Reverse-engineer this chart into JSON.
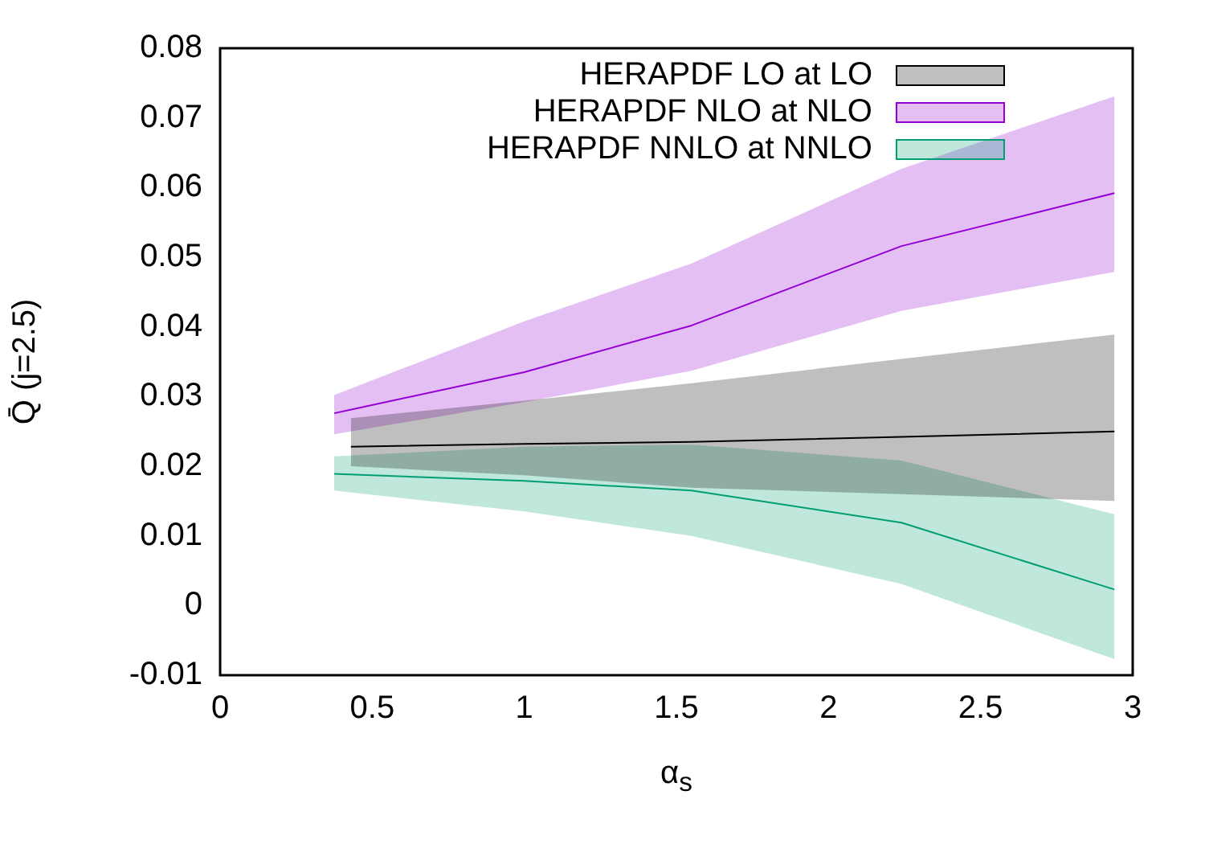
{
  "chart_data": {
    "type": "line",
    "xlabel": "α$_{s}$",
    "ylabel": "Q̄ (j=2.5)",
    "xlim": [
      0,
      3
    ],
    "xticks": [
      0,
      0.5,
      1,
      1.5,
      2,
      2.5,
      3
    ],
    "ylim": [
      -0.01,
      0.08
    ],
    "yticks": [
      -0.01,
      0,
      0.01,
      0.02,
      0.03,
      0.04,
      0.05,
      0.06,
      0.07,
      0.08
    ],
    "grid": false,
    "legend": "top right",
    "marker": "none",
    "line_style": "solid",
    "series": [
      {
        "name": "HERAPDF LO at LO",
        "color": "#000000",
        "x": [
          0.43,
          1,
          1.55,
          2.24,
          2.94
        ],
        "values": [
          0.0228,
          0.0232,
          0.0235,
          0.0242,
          0.025
        ],
        "lower": [
          0.02,
          0.0187,
          0.0169,
          0.016,
          0.015
        ],
        "upper": [
          0.0269,
          0.0294,
          0.0319,
          0.0354,
          0.0389
        ]
      },
      {
        "name": "HERAPDF NLO at NLO",
        "color": "#9400d3",
        "x": [
          0.375,
          1,
          1.55,
          2.24,
          2.94
        ],
        "values": [
          0.0276,
          0.0335,
          0.0402,
          0.0516,
          0.0592
        ],
        "lower": [
          0.0246,
          0.0292,
          0.0337,
          0.0423,
          0.0479
        ],
        "upper": [
          0.0302,
          0.0408,
          0.0491,
          0.0627,
          0.0731
        ]
      },
      {
        "name": "HERAPDF NNLO at NNLO",
        "color": "#009e73",
        "x": [
          0.375,
          1,
          1.55,
          2.24,
          2.94
        ],
        "values": [
          0.0189,
          0.0179,
          0.0165,
          0.0119,
          0.0023
        ],
        "lower": [
          0.0165,
          0.0135,
          0.01,
          0.0031,
          -0.0077
        ],
        "upper": [
          0.0214,
          0.0228,
          0.0231,
          0.0208,
          0.0131
        ]
      }
    ]
  }
}
